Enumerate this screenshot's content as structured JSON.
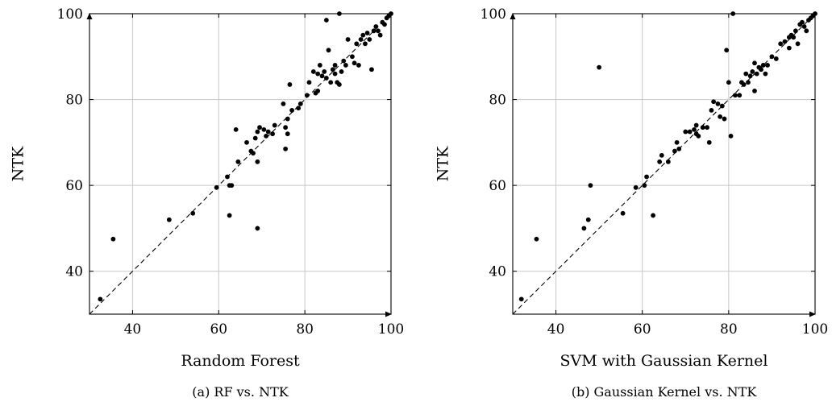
{
  "chart_data": [
    {
      "type": "scatter",
      "title": "",
      "xlabel": "Random Forest",
      "ylabel": "NTK",
      "caption": "(a) RF vs. NTK",
      "xlim": [
        30,
        100
      ],
      "ylim": [
        30,
        100
      ],
      "xticks": [
        40,
        60,
        80,
        100
      ],
      "yticks": [
        40,
        60,
        80,
        100
      ],
      "grid": true,
      "reference_line": "y = x (dashed)",
      "points": [
        [
          32.5,
          33.5
        ],
        [
          35.5,
          47.5
        ],
        [
          48.5,
          52
        ],
        [
          54,
          53.5
        ],
        [
          59.5,
          59.5
        ],
        [
          62,
          62
        ],
        [
          62.5,
          53
        ],
        [
          62.5,
          60
        ],
        [
          63,
          60
        ],
        [
          64,
          73
        ],
        [
          64.5,
          65.5
        ],
        [
          66.5,
          70
        ],
        [
          67.5,
          68
        ],
        [
          68,
          67.5
        ],
        [
          68.5,
          71
        ],
        [
          69,
          65.5
        ],
        [
          69,
          50
        ],
        [
          69,
          72.5
        ],
        [
          69.5,
          73.5
        ],
        [
          70.5,
          73
        ],
        [
          71,
          71.5
        ],
        [
          71.5,
          72.5
        ],
        [
          72.5,
          72
        ],
        [
          73,
          74
        ],
        [
          75,
          79
        ],
        [
          75.5,
          68.5
        ],
        [
          75.5,
          73.5
        ],
        [
          76,
          72
        ],
        [
          76,
          75.5
        ],
        [
          76.5,
          83.5
        ],
        [
          77,
          77.5
        ],
        [
          78.5,
          78
        ],
        [
          79,
          79
        ],
        [
          80.5,
          81
        ],
        [
          81,
          84
        ],
        [
          82,
          86.5
        ],
        [
          82.5,
          81.5
        ],
        [
          83,
          82
        ],
        [
          83,
          86
        ],
        [
          83.5,
          88
        ],
        [
          84,
          85.5
        ],
        [
          84.5,
          86.5
        ],
        [
          85,
          85
        ],
        [
          85,
          98.5
        ],
        [
          85.5,
          91.5
        ],
        [
          86,
          84
        ],
        [
          86.5,
          87
        ],
        [
          87,
          86
        ],
        [
          87,
          88
        ],
        [
          87.5,
          84
        ],
        [
          88,
          100
        ],
        [
          88,
          83.5
        ],
        [
          88.5,
          86.5
        ],
        [
          89,
          89
        ],
        [
          89.5,
          88
        ],
        [
          90,
          94
        ],
        [
          91,
          90
        ],
        [
          91.5,
          88.5
        ],
        [
          92,
          93
        ],
        [
          92.5,
          88
        ],
        [
          93,
          94
        ],
        [
          93.5,
          95
        ],
        [
          94,
          93
        ],
        [
          94.5,
          95.5
        ],
        [
          95,
          94
        ],
        [
          95.5,
          87
        ],
        [
          96,
          96
        ],
        [
          96.5,
          97
        ],
        [
          97,
          96
        ],
        [
          97.5,
          95
        ],
        [
          98,
          98
        ],
        [
          98.5,
          97.5
        ],
        [
          99,
          99
        ],
        [
          99.5,
          99.5
        ],
        [
          100,
          100
        ]
      ]
    },
    {
      "type": "scatter",
      "title": "",
      "xlabel": "SVM with Gaussian Kernel",
      "ylabel": "NTK",
      "caption": "(b) Gaussian Kernel vs. NTK",
      "xlim": [
        30,
        100
      ],
      "ylim": [
        30,
        100
      ],
      "xticks": [
        40,
        60,
        80,
        100
      ],
      "yticks": [
        40,
        60,
        80,
        100
      ],
      "grid": true,
      "reference_line": "y = x (dashed)",
      "points": [
        [
          32,
          33.5
        ],
        [
          35.5,
          47.5
        ],
        [
          46.5,
          50
        ],
        [
          47.5,
          52
        ],
        [
          48,
          60
        ],
        [
          50,
          87.5
        ],
        [
          55.5,
          53.5
        ],
        [
          58.5,
          59.5
        ],
        [
          60.5,
          60
        ],
        [
          61,
          62
        ],
        [
          62.5,
          53
        ],
        [
          64,
          65.5
        ],
        [
          64.5,
          67
        ],
        [
          66,
          65.5
        ],
        [
          67.5,
          68
        ],
        [
          68,
          70
        ],
        [
          68.5,
          68.5
        ],
        [
          70,
          72.5
        ],
        [
          71,
          72.5
        ],
        [
          72,
          73
        ],
        [
          72.5,
          74
        ],
        [
          72.5,
          72
        ],
        [
          73,
          71.5
        ],
        [
          74,
          73.5
        ],
        [
          75,
          73.5
        ],
        [
          75.5,
          70
        ],
        [
          76,
          77.5
        ],
        [
          76.5,
          79.5
        ],
        [
          77.5,
          79
        ],
        [
          78,
          76
        ],
        [
          78.5,
          78.5
        ],
        [
          79,
          75.5
        ],
        [
          79.5,
          91.5
        ],
        [
          80,
          84
        ],
        [
          80.5,
          71.5
        ],
        [
          81,
          100
        ],
        [
          81.5,
          81
        ],
        [
          82.5,
          81
        ],
        [
          83,
          84
        ],
        [
          83.5,
          83.5
        ],
        [
          84,
          86
        ],
        [
          84.5,
          84
        ],
        [
          85,
          85.5
        ],
        [
          85.5,
          86.5
        ],
        [
          86,
          82
        ],
        [
          86,
          88.5
        ],
        [
          86.5,
          86
        ],
        [
          87,
          87.5
        ],
        [
          87.5,
          87
        ],
        [
          88,
          88
        ],
        [
          88.5,
          86
        ],
        [
          89,
          88
        ],
        [
          90,
          90
        ],
        [
          91,
          89.5
        ],
        [
          92,
          93
        ],
        [
          93,
          93.5
        ],
        [
          94,
          92
        ],
        [
          94,
          94.5
        ],
        [
          94.5,
          95
        ],
        [
          95,
          94.5
        ],
        [
          95.5,
          96
        ],
        [
          96,
          93
        ],
        [
          96.5,
          97.5
        ],
        [
          97,
          98
        ],
        [
          97.5,
          97
        ],
        [
          98,
          96
        ],
        [
          98.5,
          98.5
        ],
        [
          99,
          99
        ],
        [
          99.5,
          99.5
        ],
        [
          100,
          100
        ]
      ]
    }
  ]
}
